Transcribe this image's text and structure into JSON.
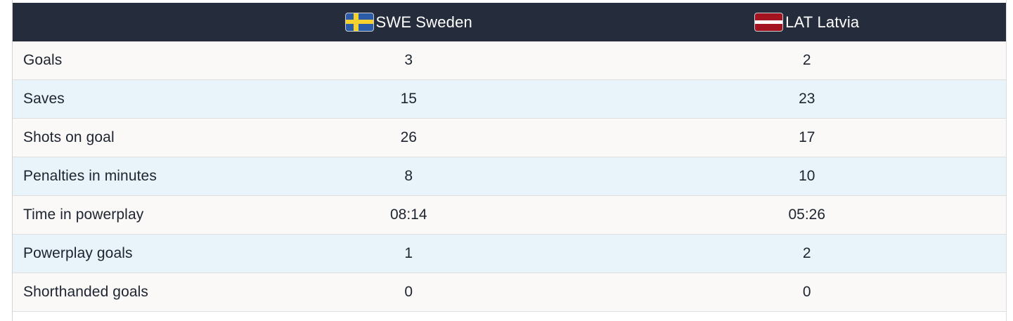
{
  "colors": {
    "header_bg": "#252c3b",
    "row_light": "#faf9f7",
    "row_blue": "#e8f3fa",
    "divider": "#dedede",
    "text": "#1d2430",
    "sweden_blue": "#2a5ca8",
    "sweden_yellow": "#f6d12e",
    "latvia_red": "#a31320"
  },
  "table": {
    "columns": [
      {
        "code": "SWE",
        "name": "Sweden",
        "flag_icon": "sweden-flag-icon"
      },
      {
        "code": "LAT",
        "name": "Latvia",
        "flag_icon": "latvia-flag-icon"
      }
    ],
    "rows": [
      {
        "label": "Goals",
        "home": "3",
        "away": "2"
      },
      {
        "label": "Saves",
        "home": "15",
        "away": "23"
      },
      {
        "label": "Shots on goal",
        "home": "26",
        "away": "17"
      },
      {
        "label": "Penalties in minutes",
        "home": "8",
        "away": "10"
      },
      {
        "label": "Time in powerplay",
        "home": "08:14",
        "away": "05:26"
      },
      {
        "label": "Powerplay goals",
        "home": "1",
        "away": "2"
      },
      {
        "label": "Shorthanded goals",
        "home": "0",
        "away": "0"
      }
    ]
  }
}
